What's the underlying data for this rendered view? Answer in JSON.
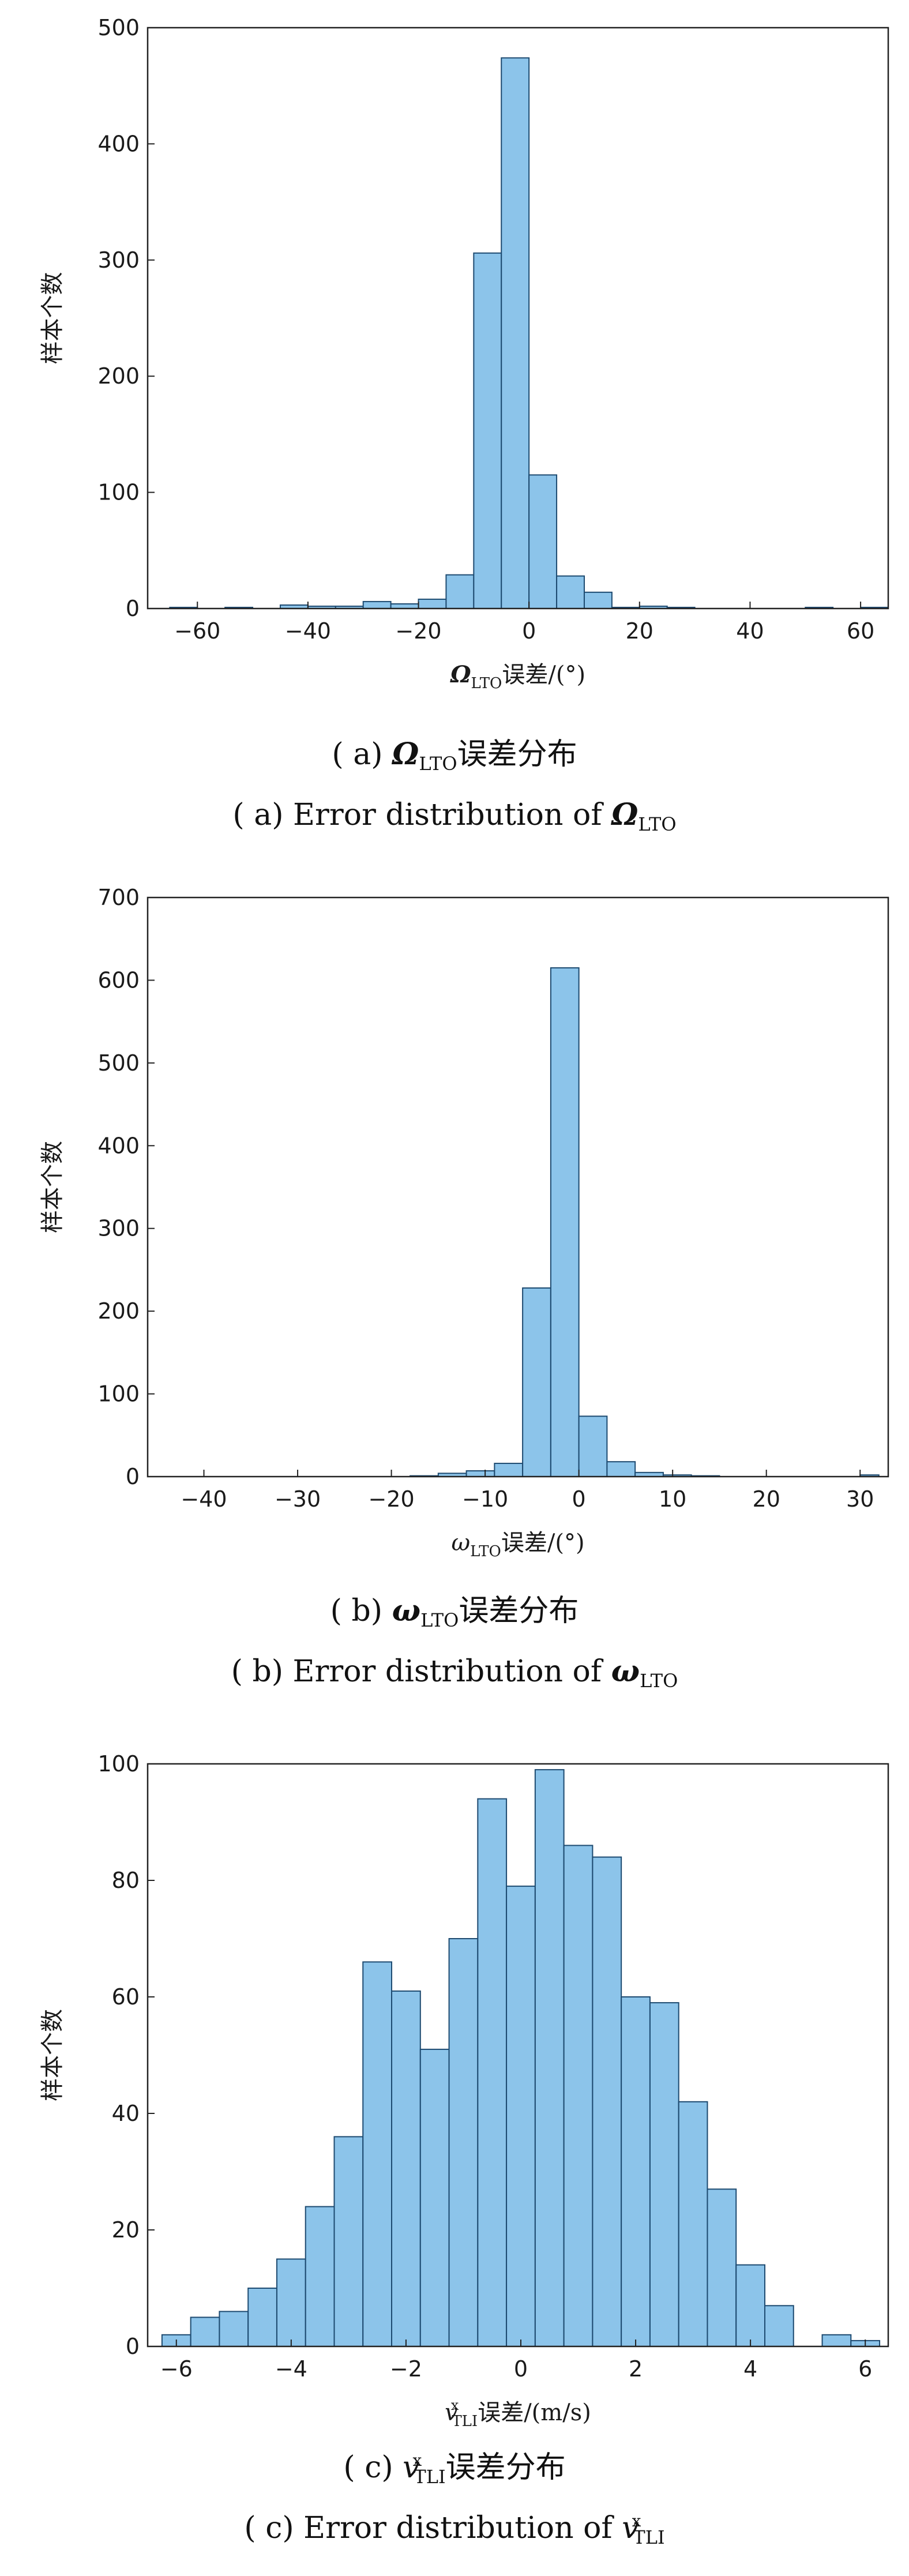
{
  "chart_data": [
    {
      "type": "bar",
      "ylabel": "样本个数",
      "xlabel": {
        "symbol": "Ω",
        "sub": "LTO",
        "text": "误差/(°)"
      },
      "xlim": [
        -69,
        65
      ],
      "ylim": [
        0,
        500
      ],
      "xticks": [
        -60,
        -40,
        -20,
        0,
        20,
        40,
        60
      ],
      "yticks": [
        0,
        100,
        200,
        300,
        400,
        500
      ],
      "grid": false,
      "bins": [
        {
          "x0": -65,
          "x1": -60,
          "value": 1
        },
        {
          "x0": -60,
          "x1": -55,
          "value": 0
        },
        {
          "x0": -55,
          "x1": -50,
          "value": 1
        },
        {
          "x0": -50,
          "x1": -45,
          "value": 0
        },
        {
          "x0": -45,
          "x1": -40,
          "value": 3
        },
        {
          "x0": -40,
          "x1": -35,
          "value": 2
        },
        {
          "x0": -35,
          "x1": -30,
          "value": 2
        },
        {
          "x0": -30,
          "x1": -25,
          "value": 6
        },
        {
          "x0": -25,
          "x1": -20,
          "value": 4
        },
        {
          "x0": -20,
          "x1": -15,
          "value": 8
        },
        {
          "x0": -15,
          "x1": -10,
          "value": 29
        },
        {
          "x0": -10,
          "x1": -5,
          "value": 306
        },
        {
          "x0": -5,
          "x1": 0,
          "value": 474
        },
        {
          "x0": 0,
          "x1": 5,
          "value": 115
        },
        {
          "x0": 5,
          "x1": 10,
          "value": 28
        },
        {
          "x0": 10,
          "x1": 15,
          "value": 14
        },
        {
          "x0": 15,
          "x1": 20,
          "value": 1
        },
        {
          "x0": 20,
          "x1": 25,
          "value": 2
        },
        {
          "x0": 25,
          "x1": 30,
          "value": 1
        },
        {
          "x0": 30,
          "x1": 35,
          "value": 0
        },
        {
          "x0": 35,
          "x1": 40,
          "value": 0
        },
        {
          "x0": 40,
          "x1": 45,
          "value": 0
        },
        {
          "x0": 45,
          "x1": 50,
          "value": 0
        },
        {
          "x0": 50,
          "x1": 55,
          "value": 1
        },
        {
          "x0": 55,
          "x1": 60,
          "value": 0
        },
        {
          "x0": 60,
          "x1": 65,
          "value": 1
        }
      ]
    },
    {
      "type": "bar",
      "ylabel": "样本个数",
      "xlabel": {
        "symbol": "ω",
        "sub": "LTO",
        "text": "误差/(°)"
      },
      "xlim": [
        -46,
        33
      ],
      "ylim": [
        0,
        700
      ],
      "xticks": [
        -40,
        -30,
        -20,
        -10,
        0,
        10,
        20,
        30
      ],
      "yticks": [
        0,
        100,
        200,
        300,
        400,
        500,
        600,
        700
      ],
      "grid": false,
      "bins": [
        {
          "x0": -18,
          "x1": -15,
          "value": 1
        },
        {
          "x0": -15,
          "x1": -12,
          "value": 4
        },
        {
          "x0": -12,
          "x1": -9,
          "value": 7
        },
        {
          "x0": -9,
          "x1": -6,
          "value": 16
        },
        {
          "x0": -6,
          "x1": -3,
          "value": 228
        },
        {
          "x0": -3,
          "x1": 0,
          "value": 615
        },
        {
          "x0": 0,
          "x1": 3,
          "value": 73
        },
        {
          "x0": 3,
          "x1": 6,
          "value": 18
        },
        {
          "x0": 6,
          "x1": 9,
          "value": 5
        },
        {
          "x0": 9,
          "x1": 12,
          "value": 2
        },
        {
          "x0": 12,
          "x1": 15,
          "value": 1
        },
        {
          "x0": 15,
          "x1": 18,
          "value": 0
        },
        {
          "x0": 18,
          "x1": 21,
          "value": 0
        },
        {
          "x0": 21,
          "x1": 24,
          "value": 0
        },
        {
          "x0": 24,
          "x1": 27,
          "value": 0
        },
        {
          "x0": 27,
          "x1": 30,
          "value": 0
        },
        {
          "x0": 30,
          "x1": 32,
          "value": 2
        }
      ]
    },
    {
      "type": "bar",
      "ylabel": "样本个数",
      "xlabel": {
        "symbol": "v",
        "sub": "TLI",
        "sup": "x",
        "text": "误差/(m/s)"
      },
      "xlim": [
        -6.5,
        6.4
      ],
      "ylim": [
        0,
        100
      ],
      "xticks": [
        -6,
        -4,
        -2,
        0,
        2,
        4,
        6
      ],
      "yticks": [
        0,
        20,
        40,
        60,
        80,
        100
      ],
      "grid": false,
      "bins": [
        {
          "x0": -6.25,
          "x1": -5.75,
          "value": 2
        },
        {
          "x0": -5.75,
          "x1": -5.25,
          "value": 5
        },
        {
          "x0": -5.25,
          "x1": -4.75,
          "value": 6
        },
        {
          "x0": -4.75,
          "x1": -4.25,
          "value": 10
        },
        {
          "x0": -4.25,
          "x1": -3.75,
          "value": 15
        },
        {
          "x0": -3.75,
          "x1": -3.25,
          "value": 24
        },
        {
          "x0": -3.25,
          "x1": -2.75,
          "value": 36
        },
        {
          "x0": -2.75,
          "x1": -2.25,
          "value": 66
        },
        {
          "x0": -2.25,
          "x1": -1.75,
          "value": 61
        },
        {
          "x0": -1.75,
          "x1": -1.25,
          "value": 51
        },
        {
          "x0": -1.25,
          "x1": -0.75,
          "value": 70
        },
        {
          "x0": -0.75,
          "x1": -0.25,
          "value": 94
        },
        {
          "x0": -0.25,
          "x1": 0.25,
          "value": 79
        },
        {
          "x0": 0.25,
          "x1": 0.75,
          "value": 99
        },
        {
          "x0": 0.75,
          "x1": 1.25,
          "value": 86
        },
        {
          "x0": 1.25,
          "x1": 1.75,
          "value": 84
        },
        {
          "x0": 1.75,
          "x1": 2.25,
          "value": 60
        },
        {
          "x0": 2.25,
          "x1": 2.75,
          "value": 59
        },
        {
          "x0": 2.75,
          "x1": 3.25,
          "value": 42
        },
        {
          "x0": 3.25,
          "x1": 3.75,
          "value": 27
        },
        {
          "x0": 3.75,
          "x1": 4.25,
          "value": 14
        },
        {
          "x0": 4.25,
          "x1": 4.75,
          "value": 7
        },
        {
          "x0": 4.75,
          "x1": 5.25,
          "value": 0
        },
        {
          "x0": 5.25,
          "x1": 5.75,
          "value": 2
        },
        {
          "x0": 5.75,
          "x1": 6.25,
          "value": 1
        }
      ]
    }
  ],
  "captions": [
    {
      "cn": {
        "prefix": "( a) ",
        "symbol": "Ω",
        "sub": "LTO",
        "text": "误差分布"
      },
      "en": {
        "prefix": "( a)  Error distribution of ",
        "symbol": "Ω",
        "sub": "LTO"
      }
    },
    {
      "cn": {
        "prefix": "( b) ",
        "symbol": "ω",
        "sub": "LTO",
        "text": "误差分布"
      },
      "en": {
        "prefix": "( b)  Error distribution of ",
        "symbol": "ω",
        "sub": "LTO"
      }
    },
    {
      "cn": {
        "prefix": "( c) ",
        "symbol": "v",
        "sub": "TLI",
        "sup": "x",
        "text": "误差分布"
      },
      "en": {
        "prefix": "( c)  Error distribution of ",
        "symbol": "v",
        "sub": "TLI",
        "sup": "x"
      }
    }
  ],
  "colors": {
    "bar_fill": "#8CC4EA",
    "bar_edge": "#1d4a70",
    "axis": "#222222"
  }
}
